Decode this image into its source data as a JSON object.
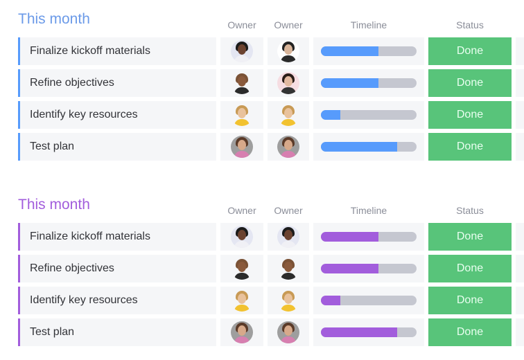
{
  "headers": {
    "owner1": "Owner",
    "owner2": "Owner",
    "timeline": "Timeline",
    "status": "Status"
  },
  "groups": [
    {
      "title": "This month",
      "color": "#579bfc",
      "titleColor": "#6b9ae8",
      "rows": [
        {
          "name": "Finalize kickoff materials",
          "owners": [
            "woman-dark-hair",
            "man-sunglasses"
          ],
          "progress": 0.6,
          "status": "Done"
        },
        {
          "name": "Refine objectives",
          "owners": [
            "man-bald",
            "woman-dark-long-hair"
          ],
          "progress": 0.6,
          "status": "Done"
        },
        {
          "name": "Identify key resources",
          "owners": [
            "woman-blonde",
            "woman-blonde"
          ],
          "progress": 0.2,
          "status": "Done"
        },
        {
          "name": "Test plan",
          "owners": [
            "man-beard",
            "man-beard"
          ],
          "progress": 0.8,
          "status": "Done"
        }
      ]
    },
    {
      "title": "This month",
      "color": "#a25ddc",
      "titleColor": "#a25ddc",
      "rows": [
        {
          "name": "Finalize kickoff materials",
          "owners": [
            "woman-dark-hair",
            "woman-dark-hair"
          ],
          "progress": 0.6,
          "status": "Done"
        },
        {
          "name": "Refine objectives",
          "owners": [
            "man-bald",
            "man-bald"
          ],
          "progress": 0.6,
          "status": "Done"
        },
        {
          "name": "Identify key resources",
          "owners": [
            "woman-blonde",
            "woman-blonde"
          ],
          "progress": 0.2,
          "status": "Done"
        },
        {
          "name": "Test plan",
          "owners": [
            "man-beard",
            "man-beard"
          ],
          "progress": 0.8,
          "status": "Done"
        }
      ]
    }
  ]
}
